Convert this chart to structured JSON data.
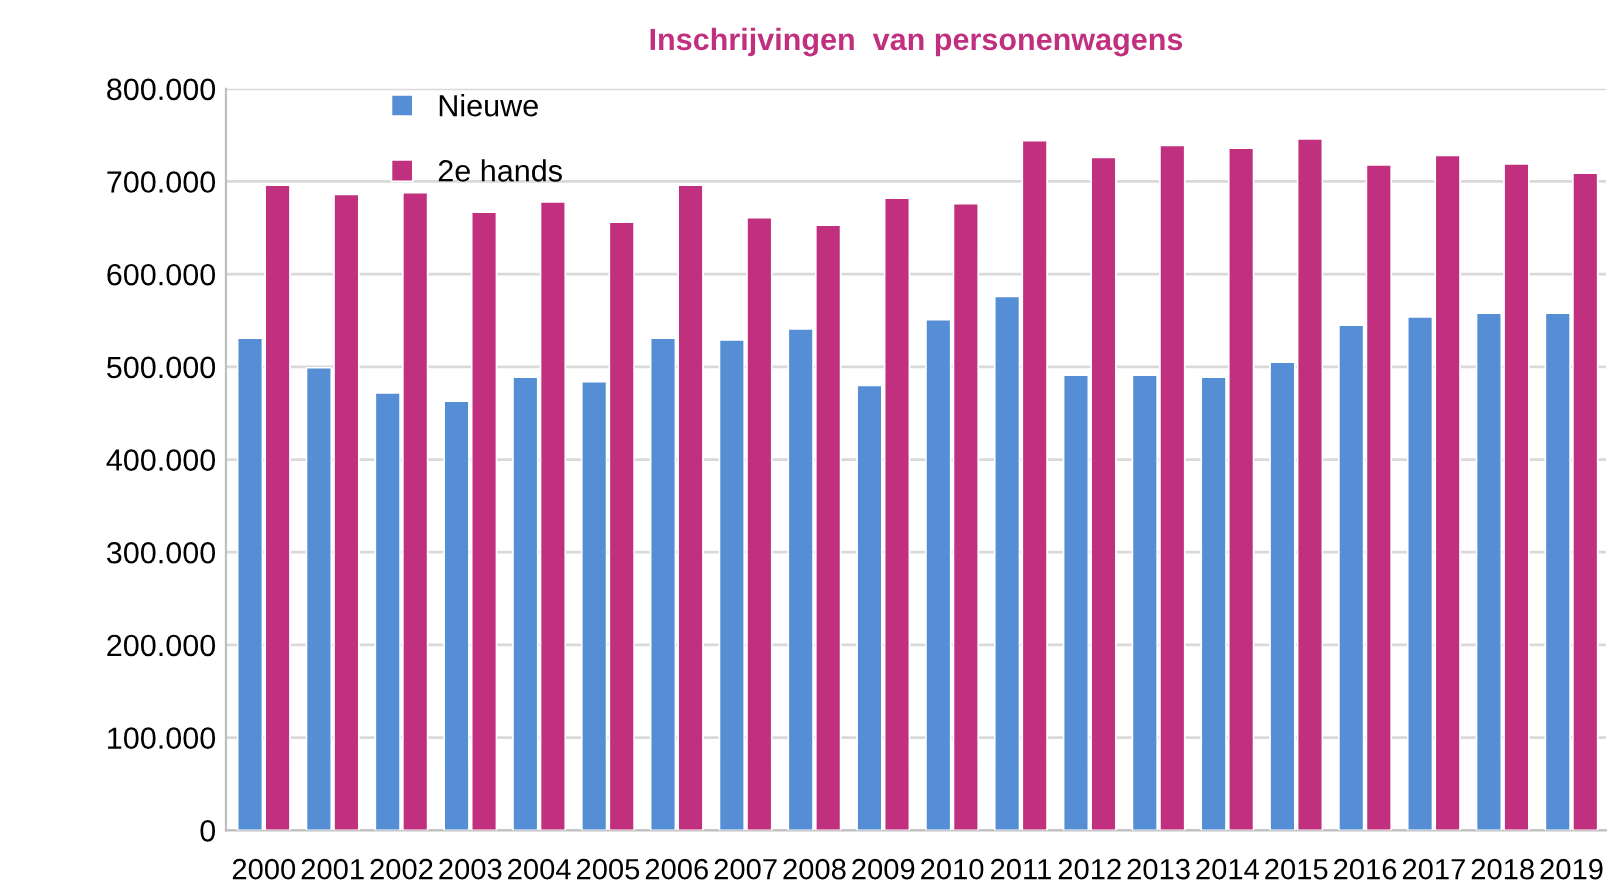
{
  "chart_data": {
    "type": "bar",
    "title": "Inschrijvingen  van personenwagens",
    "categories": [
      "2000",
      "2001",
      "2002",
      "2003",
      "2004",
      "2005",
      "2006",
      "2007",
      "2008",
      "2009",
      "2010",
      "2011",
      "2012",
      "2013",
      "2014",
      "2015",
      "2016",
      "2017",
      "2018",
      "2019"
    ],
    "series": [
      {
        "name": "Nieuwe",
        "color": "#558ed5",
        "values": [
          531000,
          499000,
          472000,
          463000,
          489000,
          484000,
          531000,
          529000,
          541000,
          480000,
          551000,
          576000,
          491000,
          491000,
          489000,
          505000,
          545000,
          554000,
          558000,
          558000
        ]
      },
      {
        "name": "2e hands",
        "color": "#c0307f",
        "values": [
          696000,
          686000,
          688000,
          667000,
          678000,
          656000,
          696000,
          661000,
          653000,
          682000,
          676000,
          744000,
          726000,
          739000,
          736000,
          746000,
          718000,
          728000,
          719000,
          709000
        ]
      }
    ],
    "ylim": [
      0,
      800000
    ],
    "yticks": [
      {
        "value": 0,
        "label": "0"
      },
      {
        "value": 100000,
        "label": "100.000"
      },
      {
        "value": 200000,
        "label": "200.000"
      },
      {
        "value": 300000,
        "label": "300.000"
      },
      {
        "value": 400000,
        "label": "400.000"
      },
      {
        "value": 500000,
        "label": "500.000"
      },
      {
        "value": 600000,
        "label": "600.000"
      },
      {
        "value": 700000,
        "label": "700.000"
      },
      {
        "value": 800000,
        "label": "800.000"
      }
    ],
    "grid": "y",
    "legend": "top left"
  }
}
